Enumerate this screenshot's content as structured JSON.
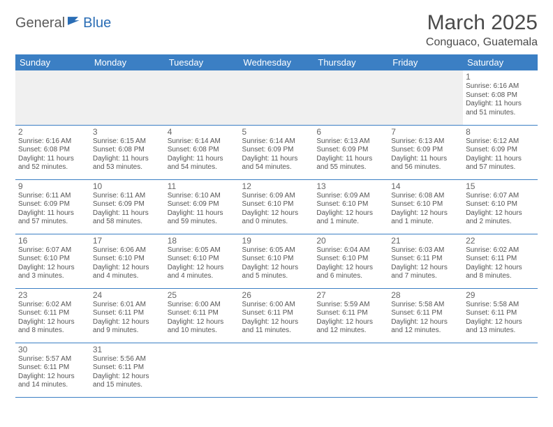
{
  "brand": {
    "part1": "General",
    "part2": "Blue"
  },
  "title": "March 2025",
  "location": "Conguaco, Guatemala",
  "colors": {
    "header_bg": "#3b7fc4",
    "header_fg": "#ffffff",
    "row_border": "#3b7fc4",
    "blank_bg": "#f0f0f0",
    "text": "#555555",
    "title_color": "#4a4a4a",
    "brand_blue": "#2a6db5"
  },
  "weekdays": [
    "Sunday",
    "Monday",
    "Tuesday",
    "Wednesday",
    "Thursday",
    "Friday",
    "Saturday"
  ],
  "first_weekday_index": 6,
  "days": [
    {
      "n": 1,
      "sunrise": "6:16 AM",
      "sunset": "6:08 PM",
      "daylight": "11 hours and 51 minutes."
    },
    {
      "n": 2,
      "sunrise": "6:16 AM",
      "sunset": "6:08 PM",
      "daylight": "11 hours and 52 minutes."
    },
    {
      "n": 3,
      "sunrise": "6:15 AM",
      "sunset": "6:08 PM",
      "daylight": "11 hours and 53 minutes."
    },
    {
      "n": 4,
      "sunrise": "6:14 AM",
      "sunset": "6:08 PM",
      "daylight": "11 hours and 54 minutes."
    },
    {
      "n": 5,
      "sunrise": "6:14 AM",
      "sunset": "6:09 PM",
      "daylight": "11 hours and 54 minutes."
    },
    {
      "n": 6,
      "sunrise": "6:13 AM",
      "sunset": "6:09 PM",
      "daylight": "11 hours and 55 minutes."
    },
    {
      "n": 7,
      "sunrise": "6:13 AM",
      "sunset": "6:09 PM",
      "daylight": "11 hours and 56 minutes."
    },
    {
      "n": 8,
      "sunrise": "6:12 AM",
      "sunset": "6:09 PM",
      "daylight": "11 hours and 57 minutes."
    },
    {
      "n": 9,
      "sunrise": "6:11 AM",
      "sunset": "6:09 PM",
      "daylight": "11 hours and 57 minutes."
    },
    {
      "n": 10,
      "sunrise": "6:11 AM",
      "sunset": "6:09 PM",
      "daylight": "11 hours and 58 minutes."
    },
    {
      "n": 11,
      "sunrise": "6:10 AM",
      "sunset": "6:09 PM",
      "daylight": "11 hours and 59 minutes."
    },
    {
      "n": 12,
      "sunrise": "6:09 AM",
      "sunset": "6:10 PM",
      "daylight": "12 hours and 0 minutes."
    },
    {
      "n": 13,
      "sunrise": "6:09 AM",
      "sunset": "6:10 PM",
      "daylight": "12 hours and 1 minute."
    },
    {
      "n": 14,
      "sunrise": "6:08 AM",
      "sunset": "6:10 PM",
      "daylight": "12 hours and 1 minute."
    },
    {
      "n": 15,
      "sunrise": "6:07 AM",
      "sunset": "6:10 PM",
      "daylight": "12 hours and 2 minutes."
    },
    {
      "n": 16,
      "sunrise": "6:07 AM",
      "sunset": "6:10 PM",
      "daylight": "12 hours and 3 minutes."
    },
    {
      "n": 17,
      "sunrise": "6:06 AM",
      "sunset": "6:10 PM",
      "daylight": "12 hours and 4 minutes."
    },
    {
      "n": 18,
      "sunrise": "6:05 AM",
      "sunset": "6:10 PM",
      "daylight": "12 hours and 4 minutes."
    },
    {
      "n": 19,
      "sunrise": "6:05 AM",
      "sunset": "6:10 PM",
      "daylight": "12 hours and 5 minutes."
    },
    {
      "n": 20,
      "sunrise": "6:04 AM",
      "sunset": "6:10 PM",
      "daylight": "12 hours and 6 minutes."
    },
    {
      "n": 21,
      "sunrise": "6:03 AM",
      "sunset": "6:11 PM",
      "daylight": "12 hours and 7 minutes."
    },
    {
      "n": 22,
      "sunrise": "6:02 AM",
      "sunset": "6:11 PM",
      "daylight": "12 hours and 8 minutes."
    },
    {
      "n": 23,
      "sunrise": "6:02 AM",
      "sunset": "6:11 PM",
      "daylight": "12 hours and 8 minutes."
    },
    {
      "n": 24,
      "sunrise": "6:01 AM",
      "sunset": "6:11 PM",
      "daylight": "12 hours and 9 minutes."
    },
    {
      "n": 25,
      "sunrise": "6:00 AM",
      "sunset": "6:11 PM",
      "daylight": "12 hours and 10 minutes."
    },
    {
      "n": 26,
      "sunrise": "6:00 AM",
      "sunset": "6:11 PM",
      "daylight": "12 hours and 11 minutes."
    },
    {
      "n": 27,
      "sunrise": "5:59 AM",
      "sunset": "6:11 PM",
      "daylight": "12 hours and 12 minutes."
    },
    {
      "n": 28,
      "sunrise": "5:58 AM",
      "sunset": "6:11 PM",
      "daylight": "12 hours and 12 minutes."
    },
    {
      "n": 29,
      "sunrise": "5:58 AM",
      "sunset": "6:11 PM",
      "daylight": "12 hours and 13 minutes."
    },
    {
      "n": 30,
      "sunrise": "5:57 AM",
      "sunset": "6:11 PM",
      "daylight": "12 hours and 14 minutes."
    },
    {
      "n": 31,
      "sunrise": "5:56 AM",
      "sunset": "6:11 PM",
      "daylight": "12 hours and 15 minutes."
    }
  ],
  "labels": {
    "sunrise": "Sunrise:",
    "sunset": "Sunset:",
    "daylight": "Daylight:"
  }
}
